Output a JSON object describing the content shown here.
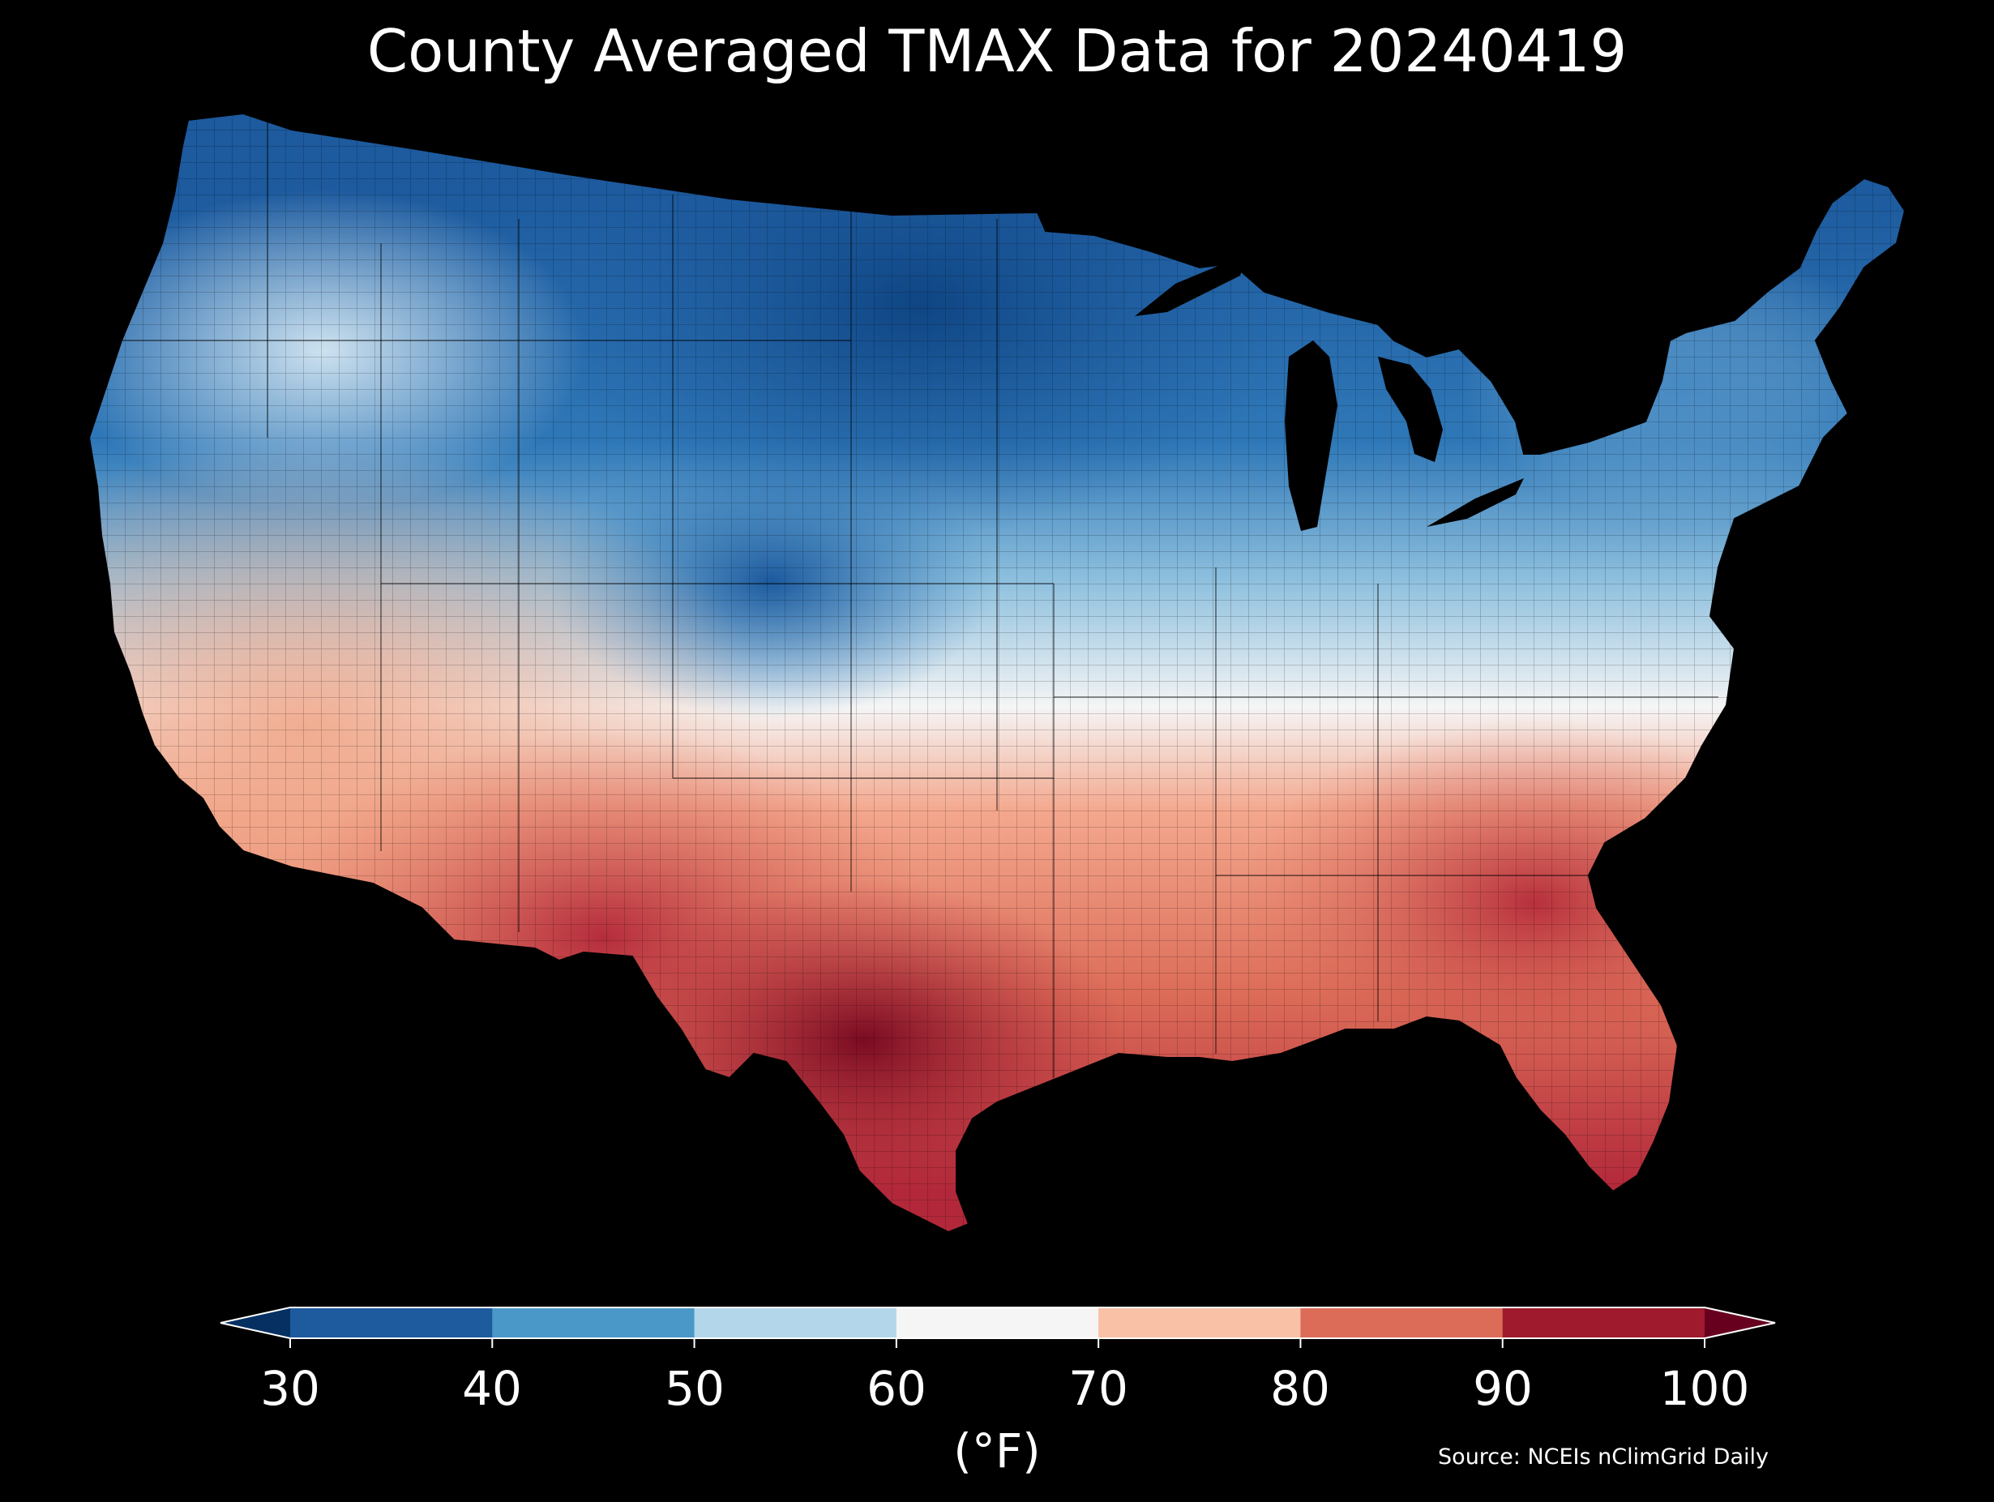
{
  "title": "County Averaged TMAX Data for 20240419",
  "colorbar": {
    "ticks": [
      "30",
      "40",
      "50",
      "60",
      "70",
      "80",
      "90",
      "100"
    ],
    "unit_label": "(°F)",
    "colors": [
      "#053061",
      "#1d5a9e",
      "#4a98c8",
      "#b4d6ea",
      "#f5f5f5",
      "#f9c1a6",
      "#dc6c58",
      "#9e1a2c",
      "#67001f"
    ],
    "extend": "both"
  },
  "source": "Source: NCEIs nClimGrid Daily",
  "map": {
    "region": "contiguous United States",
    "boundaries": "county",
    "variable": "TMAX",
    "date": "20240419",
    "units": "°F",
    "regional_values": [
      {
        "region": "Northern Plains (ND, SD, MN)",
        "bin": "30-40"
      },
      {
        "region": "Nebraska / Kansas / eastern Colorado",
        "bin": "30-50"
      },
      {
        "region": "Montana / Wyoming",
        "bin": "40-50"
      },
      {
        "region": "Pacific Northwest / Idaho",
        "bin": "50-60"
      },
      {
        "region": "Great Lakes / Northeast",
        "bin": "40-60"
      },
      {
        "region": "Central California / Nevada",
        "bin": "60-80"
      },
      {
        "region": "Southern Arizona / West Texas",
        "bin": "80-100"
      },
      {
        "region": "South Texas",
        "bin": "90-100"
      },
      {
        "region": "Southeast / Georgia / Carolinas",
        "bin": "80-90"
      },
      {
        "region": "Florida",
        "bin": "80-90"
      }
    ]
  }
}
